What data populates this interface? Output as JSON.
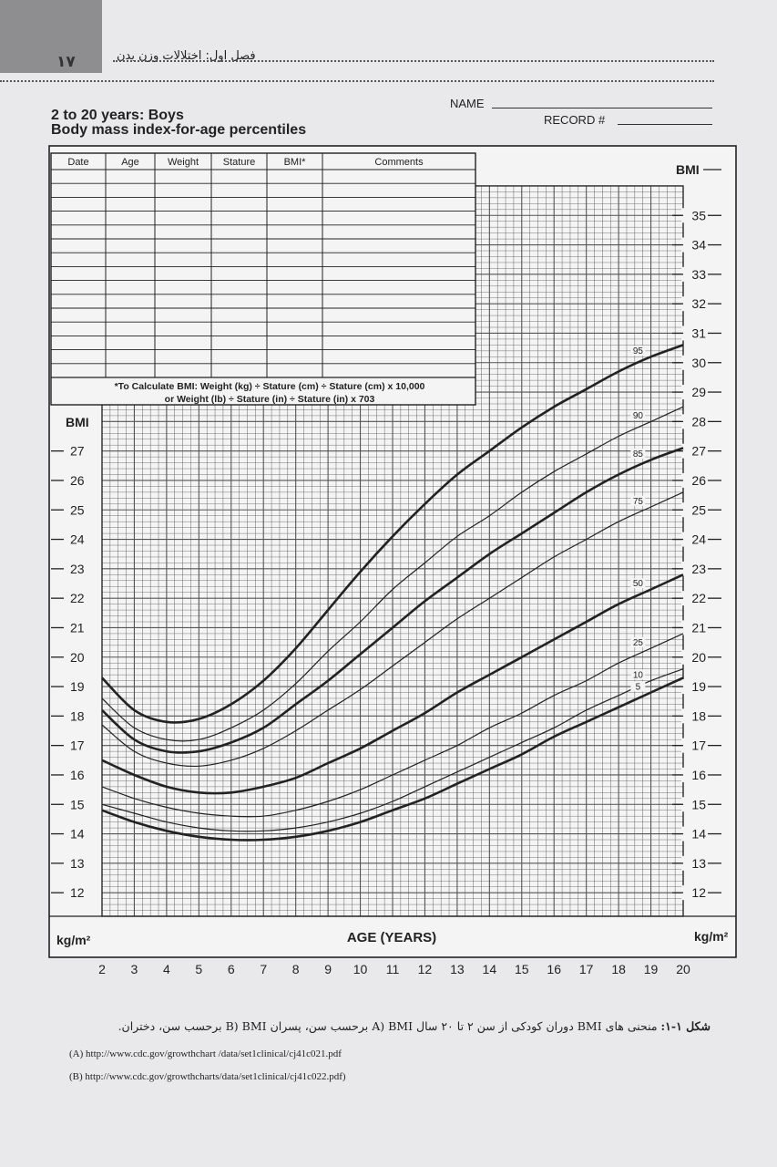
{
  "header": {
    "page_number": "۱۷",
    "chapter_title": "فصل اول: اختلالات وزن بدن"
  },
  "form": {
    "title_line1": "2 to 20 years: Boys",
    "title_line2": "Body mass index-for-age percentiles",
    "name_label": "NAME",
    "record_label": "RECORD #"
  },
  "table": {
    "columns": [
      "Date",
      "Age",
      "Weight",
      "Stature",
      "BMI*",
      "Comments"
    ],
    "note_line1": "*To Calculate BMI: Weight (kg) ÷ Stature (cm) ÷ Stature (cm) x 10,000",
    "note_line2": "or Weight (lb) ÷ Stature (in) ÷ Stature (in) x 703"
  },
  "chart_data": {
    "type": "line",
    "xlabel": "AGE (YEARS)",
    "unit_left": "kg/m²",
    "unit_right": "kg/m²",
    "ylabel_left": "BMI",
    "ylabel_right": "BMI",
    "xlim": [
      2,
      20
    ],
    "ylim": [
      11.2,
      36
    ],
    "x_ticks": [
      2,
      3,
      4,
      5,
      6,
      7,
      8,
      9,
      10,
      11,
      12,
      13,
      14,
      15,
      16,
      17,
      18,
      19,
      20
    ],
    "left_y_ticks": [
      12,
      13,
      14,
      15,
      16,
      17,
      18,
      19,
      20,
      21,
      22,
      23,
      24,
      25,
      26,
      27
    ],
    "right_y_ticks": [
      12,
      13,
      14,
      15,
      16,
      17,
      18,
      19,
      20,
      21,
      22,
      23,
      24,
      25,
      26,
      27,
      28,
      29,
      30,
      31,
      32,
      33,
      34,
      35
    ],
    "grid": true,
    "x": [
      2,
      3,
      4,
      5,
      6,
      7,
      8,
      9,
      10,
      11,
      12,
      13,
      14,
      15,
      16,
      17,
      18,
      19,
      20
    ],
    "series": [
      {
        "name": "95",
        "bold": true,
        "values": [
          19.3,
          18.2,
          17.8,
          17.9,
          18.4,
          19.2,
          20.3,
          21.6,
          22.9,
          24.1,
          25.2,
          26.2,
          27.0,
          27.8,
          28.5,
          29.1,
          29.7,
          30.2,
          30.6
        ]
      },
      {
        "name": "90",
        "bold": false,
        "values": [
          18.6,
          17.6,
          17.2,
          17.2,
          17.6,
          18.2,
          19.1,
          20.2,
          21.2,
          22.3,
          23.2,
          24.1,
          24.8,
          25.6,
          26.3,
          26.9,
          27.5,
          28.0,
          28.5
        ]
      },
      {
        "name": "85",
        "bold": true,
        "values": [
          18.2,
          17.2,
          16.8,
          16.8,
          17.1,
          17.6,
          18.4,
          19.2,
          20.1,
          21.0,
          21.9,
          22.7,
          23.5,
          24.2,
          24.9,
          25.6,
          26.2,
          26.7,
          27.1
        ]
      },
      {
        "name": "75",
        "bold": false,
        "values": [
          17.7,
          16.8,
          16.4,
          16.3,
          16.5,
          16.9,
          17.5,
          18.2,
          18.9,
          19.7,
          20.5,
          21.3,
          22.0,
          22.7,
          23.4,
          24.0,
          24.6,
          25.1,
          25.6
        ]
      },
      {
        "name": "50",
        "bold": true,
        "values": [
          16.5,
          16.0,
          15.6,
          15.4,
          15.4,
          15.6,
          15.9,
          16.4,
          16.9,
          17.5,
          18.1,
          18.8,
          19.4,
          20.0,
          20.6,
          21.2,
          21.8,
          22.3,
          22.8
        ]
      },
      {
        "name": "25",
        "bold": false,
        "values": [
          15.6,
          15.2,
          14.9,
          14.7,
          14.6,
          14.6,
          14.8,
          15.1,
          15.5,
          16.0,
          16.5,
          17.0,
          17.6,
          18.1,
          18.7,
          19.2,
          19.8,
          20.3,
          20.8
        ]
      },
      {
        "name": "10",
        "bold": false,
        "values": [
          15.0,
          14.7,
          14.4,
          14.2,
          14.1,
          14.1,
          14.2,
          14.4,
          14.7,
          15.1,
          15.6,
          16.1,
          16.6,
          17.1,
          17.6,
          18.2,
          18.7,
          19.2,
          19.6
        ]
      },
      {
        "name": "5",
        "bold": true,
        "values": [
          14.8,
          14.4,
          14.1,
          13.9,
          13.8,
          13.8,
          13.9,
          14.1,
          14.4,
          14.8,
          15.2,
          15.7,
          16.2,
          16.7,
          17.3,
          17.8,
          18.3,
          18.8,
          19.3
        ]
      }
    ]
  },
  "caption": {
    "label": "شکل ۱-۱:",
    "text": "منحنی های BMI دوران کودکی از سن ۲ تا ۲۰ سال A) BMI برحسب سن، پسران B) BMI برحسب سن، دختران.",
    "url_a": "(A) http://www.cdc.gov/growthchart /data/set1clinical/cj41c021.pdf",
    "url_b": "(B) http://www.cdc.gov/growthcharts/data/set1clinical/cj41c022.pdf)"
  },
  "colors": {
    "page": "#e9e9eb",
    "chart_bg": "#f4f4f4",
    "ink": "#222222",
    "grid": "#555555",
    "corner_tab": "#8e8e90"
  }
}
